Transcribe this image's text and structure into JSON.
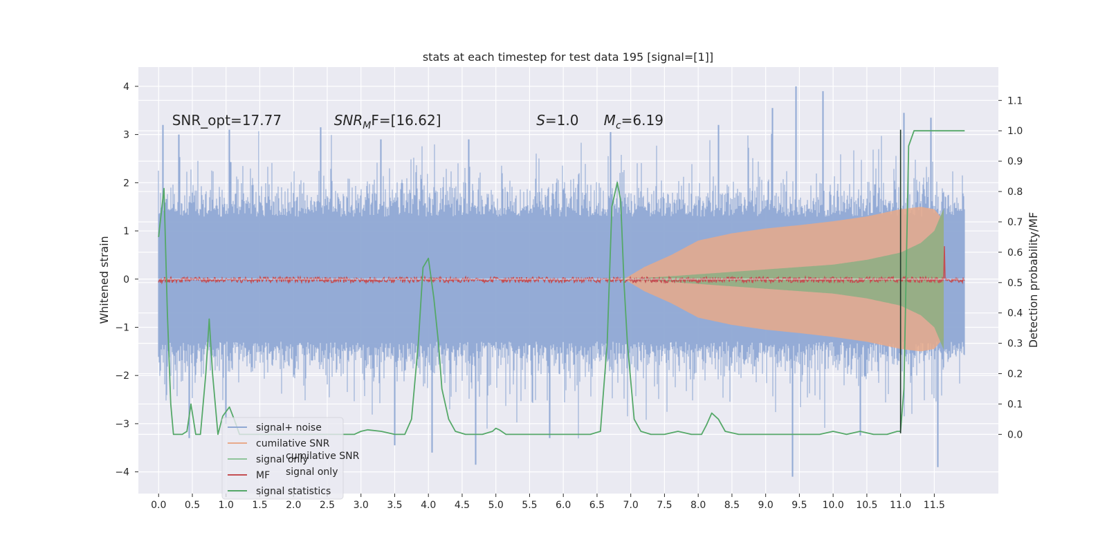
{
  "chart_data": {
    "type": "line",
    "title": "stats at each timestep for test data 195 [signal=[1]]",
    "ylabel": "Whitened strain",
    "y2label": "Detection probability/MF",
    "xlim": [
      -0.3,
      12.45
    ],
    "ylim": [
      -4.45,
      4.4
    ],
    "y2lim": [
      -0.195,
      1.21
    ],
    "xticks": [
      0.0,
      0.5,
      1.0,
      1.5,
      2.0,
      2.5,
      3.0,
      3.5,
      4.0,
      4.5,
      5.0,
      5.5,
      6.0,
      6.5,
      7.0,
      7.5,
      8.0,
      8.5,
      9.0,
      9.5,
      10.0,
      10.5,
      11.0,
      11.5
    ],
    "xtick_labels": [
      "0.0",
      "0.5",
      "1.0",
      "1.5",
      "2.0",
      "2.5",
      "3.0",
      "3.5",
      "4.0",
      "4.5",
      "5.0",
      "5.5",
      "6.0",
      "6.5",
      "7.0",
      "7.5",
      "8.0",
      "8.5",
      "9.0",
      "9.5",
      "10.0",
      "10.5",
      "11.0",
      "11.5"
    ],
    "yticks": [
      -4,
      -3,
      -2,
      -1,
      0,
      1,
      2,
      3,
      4
    ],
    "ytick_labels": [
      "−4",
      "−3",
      "−2",
      "−1",
      "0",
      "1",
      "2",
      "3",
      "4"
    ],
    "y2ticks": [
      0.0,
      0.1,
      0.2,
      0.3,
      0.4,
      0.5,
      0.6,
      0.7,
      0.8,
      0.9,
      1.0,
      1.1
    ],
    "y2tick_labels": [
      "0.0",
      "0.1",
      "0.2",
      "0.3",
      "0.4",
      "0.5",
      "0.6",
      "0.7",
      "0.8",
      "0.9",
      "1.0",
      "1.1"
    ],
    "annotations": [
      {
        "text": "SNR_opt=17.77",
        "x": 0.2,
        "y": 3.15
      },
      {
        "text": "SNR",
        "sub": "M",
        "text2": "F=[16.62]",
        "italic": true,
        "x": 2.6,
        "y": 3.15
      },
      {
        "text": "S",
        "text2": "=1.0",
        "italic": true,
        "x": 5.6,
        "y": 3.15
      },
      {
        "text": "M",
        "sub": "c",
        "text2": "=6.19",
        "italic": true,
        "x": 6.6,
        "y": 3.15
      }
    ],
    "vline": {
      "x": 11.0,
      "y_from": -3.2,
      "y_to": 3.1,
      "color": "#1f3b2a"
    },
    "legend": {
      "placement": "lower-left",
      "entries": [
        {
          "label": "signal+ noise",
          "color": "#8fa8d4"
        },
        {
          "label": "cumilative SNR",
          "color": "#e8a989"
        },
        {
          "label": "signal only",
          "color": "#8fc49a"
        },
        {
          "label": "MF",
          "color": "#c44e52"
        },
        {
          "label": "signal statistics",
          "color": "#55a868"
        }
      ],
      "ghost_labels": [
        "cumilative SNR",
        "signal only"
      ]
    },
    "series": [
      {
        "name": "signal+ noise",
        "style": "noise band",
        "color": "#8fa8d4",
        "x_range": [
          0.0,
          11.95
        ],
        "typical_upper": 1.8,
        "typical_lower": -1.8,
        "peaks": [
          {
            "x": 0.06,
            "y": 3.2
          },
          {
            "x": 0.3,
            "y": 3.0
          },
          {
            "x": 1.05,
            "y": 3.1
          },
          {
            "x": 2.4,
            "y": 3.15
          },
          {
            "x": 3.3,
            "y": 2.9
          },
          {
            "x": 4.6,
            "y": 2.9
          },
          {
            "x": 6.7,
            "y": 3.05
          },
          {
            "x": 8.3,
            "y": 3.2
          },
          {
            "x": 9.1,
            "y": 3.55
          },
          {
            "x": 9.45,
            "y": 4.0
          },
          {
            "x": 9.85,
            "y": 3.9
          },
          {
            "x": 11.05,
            "y": 3.45
          },
          {
            "x": 11.45,
            "y": 3.35
          }
        ],
        "troughs": [
          {
            "x": 0.45,
            "y": -3.3
          },
          {
            "x": 1.0,
            "y": -3.0
          },
          {
            "x": 3.5,
            "y": -3.45
          },
          {
            "x": 4.05,
            "y": -3.6
          },
          {
            "x": 4.7,
            "y": -3.85
          },
          {
            "x": 5.8,
            "y": -3.3
          },
          {
            "x": 9.4,
            "y": -4.1
          },
          {
            "x": 10.4,
            "y": -3.25
          },
          {
            "x": 11.55,
            "y": -3.9
          }
        ]
      },
      {
        "name": "cumilative SNR",
        "style": "growing envelope",
        "color": "#e8a989",
        "x": [
          6.9,
          7.2,
          7.6,
          8.0,
          8.5,
          9.0,
          9.5,
          10.0,
          10.5,
          11.0,
          11.3,
          11.5,
          11.65
        ],
        "amplitude": [
          0.0,
          0.25,
          0.5,
          0.8,
          0.95,
          1.05,
          1.12,
          1.2,
          1.3,
          1.45,
          1.5,
          1.45,
          1.2
        ]
      },
      {
        "name": "signal only",
        "style": "chirp envelope",
        "color": "#8fc49a",
        "x": [
          6.9,
          7.5,
          8.0,
          8.5,
          9.0,
          9.5,
          10.0,
          10.5,
          11.0,
          11.3,
          11.5,
          11.65
        ],
        "amplitude": [
          0.0,
          0.05,
          0.1,
          0.15,
          0.2,
          0.25,
          0.3,
          0.4,
          0.55,
          0.75,
          1.0,
          1.5
        ]
      },
      {
        "name": "MF",
        "style": "noisy line",
        "color": "#c44e52",
        "axis": "right",
        "x_range": [
          0.0,
          11.95
        ],
        "baseline": 0.5,
        "jitter": 0.02,
        "spike": {
          "x": 11.65,
          "y": 0.62
        }
      },
      {
        "name": "signal statistics",
        "style": "line",
        "color": "#55a868",
        "axis": "right",
        "x": [
          0.0,
          0.08,
          0.13,
          0.18,
          0.22,
          0.3,
          0.35,
          0.42,
          0.48,
          0.55,
          0.62,
          0.7,
          0.75,
          0.8,
          0.88,
          0.95,
          1.05,
          1.12,
          1.2,
          1.4,
          1.7,
          2.0,
          2.3,
          2.6,
          2.9,
          3.0,
          3.1,
          3.3,
          3.5,
          3.65,
          3.75,
          3.85,
          3.92,
          4.0,
          4.08,
          4.15,
          4.2,
          4.3,
          4.4,
          4.55,
          4.8,
          4.95,
          5.0,
          5.05,
          5.15,
          5.5,
          6.0,
          6.4,
          6.55,
          6.65,
          6.72,
          6.8,
          6.85,
          6.9,
          6.95,
          7.05,
          7.15,
          7.3,
          7.5,
          7.7,
          7.9,
          8.05,
          8.12,
          8.2,
          8.3,
          8.4,
          8.6,
          9.0,
          9.5,
          9.8,
          10.0,
          10.2,
          10.4,
          10.6,
          10.8,
          10.95,
          11.0,
          11.05,
          11.12,
          11.2,
          11.4,
          11.6,
          11.95
        ],
        "y": [
          0.65,
          0.81,
          0.4,
          0.1,
          0.0,
          0.0,
          0.0,
          0.01,
          0.1,
          0.0,
          0.0,
          0.2,
          0.38,
          0.2,
          0.0,
          0.06,
          0.09,
          0.05,
          0.0,
          0.0,
          0.0,
          0.0,
          0.0,
          0.0,
          0.0,
          0.01,
          0.015,
          0.01,
          0.0,
          0.0,
          0.05,
          0.3,
          0.55,
          0.58,
          0.45,
          0.3,
          0.15,
          0.05,
          0.01,
          0.0,
          0.0,
          0.01,
          0.02,
          0.015,
          0.0,
          0.0,
          0.0,
          0.0,
          0.01,
          0.3,
          0.75,
          0.83,
          0.77,
          0.5,
          0.3,
          0.05,
          0.01,
          0.0,
          0.0,
          0.01,
          0.0,
          0.0,
          0.03,
          0.07,
          0.05,
          0.01,
          0.0,
          0.0,
          0.0,
          0.0,
          0.01,
          0.0,
          0.01,
          0.0,
          0.0,
          0.01,
          0.01,
          0.15,
          0.95,
          1.0,
          1.0,
          1.0,
          1.0
        ]
      }
    ]
  }
}
